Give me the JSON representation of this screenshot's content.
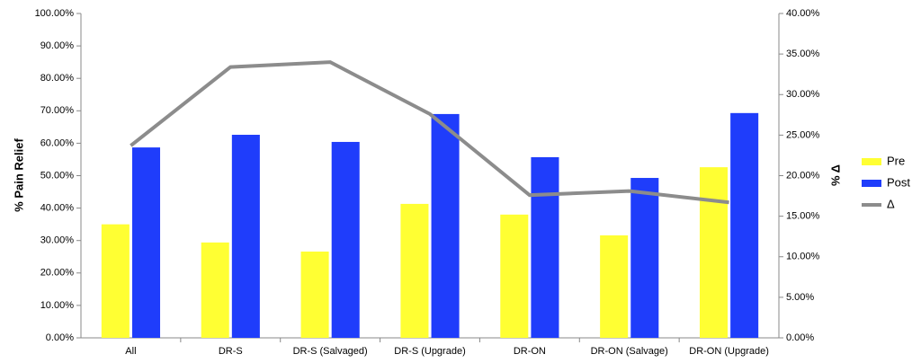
{
  "chart_data": {
    "type": "bar",
    "y_label": "% Pain Relief",
    "y2_label": "% Δ",
    "categories": [
      "All",
      "DR-S",
      "DR-S (Salvaged)",
      "DR-S (Upgrade)",
      "DR-ON",
      "DR-ON (Salvage)",
      "DR-ON (Upgrade)"
    ],
    "series": [
      {
        "name": "Pre",
        "color": "#ffff33",
        "type": "bar",
        "values": [
          35,
          29.4,
          26.6,
          41.3,
          38,
          31.6,
          52.6
        ]
      },
      {
        "name": "Post",
        "color": "#1f3dfb",
        "type": "bar",
        "values": [
          58.7,
          62.6,
          60.4,
          69,
          55.7,
          49.3,
          69.3
        ]
      },
      {
        "name": "Δ",
        "color": "#8c8c8c",
        "type": "line",
        "axis": "y2",
        "values": [
          23.7,
          33.4,
          34,
          27.6,
          17.6,
          18.1,
          16.7
        ]
      }
    ],
    "ylim": [
      0,
      100
    ],
    "yticks": [
      {
        "value": 0,
        "label": "0.00%"
      },
      {
        "value": 10,
        "label": "10.00%"
      },
      {
        "value": 20,
        "label": "20.00%"
      },
      {
        "value": 30,
        "label": "30.00%"
      },
      {
        "value": 40,
        "label": "40.00%"
      },
      {
        "value": 50,
        "label": "50.00%"
      },
      {
        "value": 60,
        "label": "60.00%"
      },
      {
        "value": 70,
        "label": "70.00%"
      },
      {
        "value": 80,
        "label": "80.00%"
      },
      {
        "value": 90,
        "label": "90.00%"
      },
      {
        "value": 100,
        "label": "100.00%"
      }
    ],
    "y2lim": [
      0,
      40
    ],
    "y2ticks": [
      {
        "value": 0,
        "label": "0.00%"
      },
      {
        "value": 5,
        "label": "5.00%"
      },
      {
        "value": 10,
        "label": "10.00%"
      },
      {
        "value": 15,
        "label": "15.00%"
      },
      {
        "value": 20,
        "label": "20.00%"
      },
      {
        "value": 25,
        "label": "25.00%"
      },
      {
        "value": 30,
        "label": "30.00%"
      },
      {
        "value": 35,
        "label": "35.00%"
      },
      {
        "value": 40,
        "label": "40.00%"
      }
    ],
    "grid": false,
    "legend": "right"
  }
}
